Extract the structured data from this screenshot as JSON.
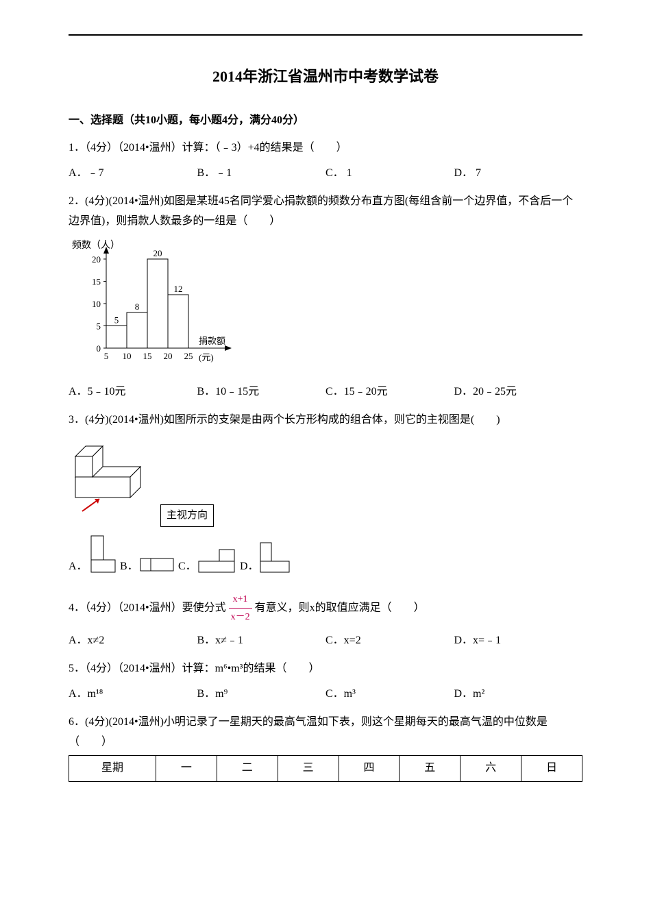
{
  "title": "2014年浙江省温州市中考数学试卷",
  "section1": {
    "heading": "一、选择题（共10小题，每小题4分，满分40分）"
  },
  "q1": {
    "stem": "1．（4分）（2014•温州）计算：（﹣3）+4的结果是（　　）",
    "A": "A．﹣7",
    "B": "B．﹣1",
    "C": "C．  1",
    "D": "D．  7"
  },
  "q2": {
    "stem": "2．(4分)(2014•温州)如图是某班45名同学爱心捐款额的频数分布直方图(每组含前一个边界值，不含后一个边界值)，则捐款人数最多的一组是（　　）",
    "A": "A．5﹣10元",
    "B": "B．10﹣15元",
    "C": "C．15﹣20元",
    "D": "D．20﹣25元",
    "chart": {
      "type": "bar",
      "ylabel": "频数（人）",
      "xlabel": "捐款额 (元)",
      "x_ticks": [
        "5",
        "10",
        "15",
        "20",
        "25"
      ],
      "y_ticks": [
        0,
        5,
        10,
        15,
        20
      ],
      "bars": [
        {
          "x": 5,
          "h": 5,
          "label": "5"
        },
        {
          "x": 10,
          "h": 8,
          "label": "8"
        },
        {
          "x": 15,
          "h": 20,
          "label": "20"
        },
        {
          "x": 20,
          "h": 12,
          "label": "12"
        }
      ],
      "axis_color": "#000",
      "bar_fill": "#ffffff",
      "bar_stroke": "#000",
      "font_size": 13
    }
  },
  "q3": {
    "stem": "3．(4分)(2014•温州)如图所示的支架是由两个长方形构成的组合体，则它的主视图是(　　)",
    "view_label": "主视方向",
    "A": "A．",
    "B": "B．",
    "C": "C．",
    "D": "D．"
  },
  "q4": {
    "stem_pre": "4．（4分）（2014•温州）要使分式",
    "frac_num": "x+1",
    "frac_den": "x－2",
    "stem_post": "有意义，则x的取值应满足（　　）",
    "A": "A．x≠2",
    "B": "B．x≠﹣1",
    "C": "C．x=2",
    "D": "D．x=﹣1"
  },
  "q5": {
    "stem": "5．（4分）（2014•温州）计算：m⁶•m³的结果（　　）",
    "A": "A．m¹⁸",
    "B": "B．m⁹",
    "C": "C．m³",
    "D": "D．m²"
  },
  "q6": {
    "stem": "6．(4分)(2014•温州)小明记录了一星期天的最高气温如下表，则这个星期每天的最高气温的中位数是（　　）",
    "table": {
      "header": [
        "星期",
        "一",
        "二",
        "三",
        "四",
        "五",
        "六",
        "日"
      ]
    }
  }
}
